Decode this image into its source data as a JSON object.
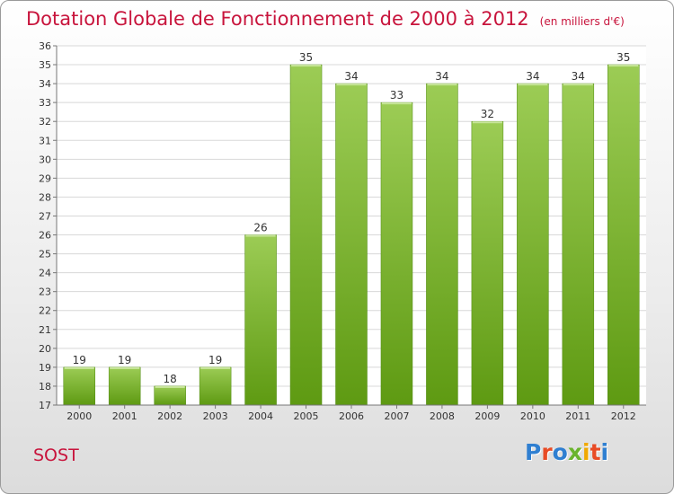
{
  "title": "Dotation Globale de Fonctionnement de 2000 à 2012",
  "subtitle": "(en milliers d'€)",
  "location": "SOST",
  "logo": {
    "text": "Proxiti",
    "colors": [
      "#2f7fd1",
      "#e84b25",
      "#2f7fd1",
      "#6ab42d",
      "#f0a800",
      "#e84b25",
      "#2f7fd1"
    ]
  },
  "chart_data": {
    "type": "bar",
    "categories": [
      "2000",
      "2001",
      "2002",
      "2003",
      "2004",
      "2005",
      "2006",
      "2007",
      "2008",
      "2009",
      "2010",
      "2011",
      "2012"
    ],
    "values": [
      19,
      19,
      18,
      19,
      26,
      35,
      34,
      33,
      34,
      32,
      34,
      34,
      35
    ],
    "ylim": [
      17,
      36
    ],
    "yticks": [
      17,
      18,
      19,
      20,
      21,
      22,
      23,
      24,
      25,
      26,
      27,
      28,
      29,
      30,
      31,
      32,
      33,
      34,
      35,
      36
    ],
    "grid": true,
    "bar_color": "#7ab62e",
    "xlabel": "",
    "ylabel": ""
  }
}
